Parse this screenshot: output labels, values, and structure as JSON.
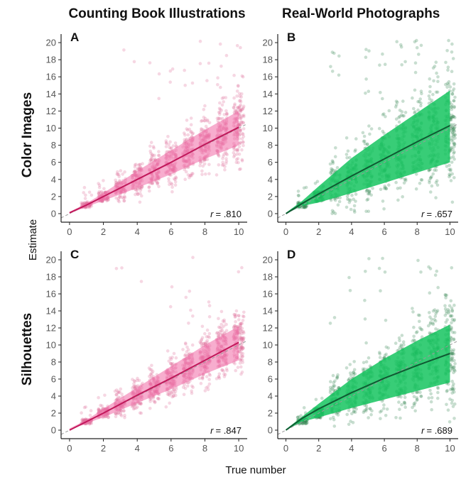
{
  "column_titles": [
    "Counting Book Illustrations",
    "Real-World Photographs"
  ],
  "row_titles": [
    "Color Images",
    "Silhouettes"
  ],
  "xlabel": "True number",
  "ylabel": "Estimate",
  "colors": {
    "pink_point": "#e0709c",
    "pink_band": "#f06aa6",
    "pink_line": "#c2185b",
    "green_point": "#3a8a55",
    "green_band": "#15c45f",
    "green_line": "#0f5a32",
    "identity_line": "#9a9a9a"
  },
  "chart_data": [
    {
      "type": "scatter",
      "panel": "A",
      "row": "Color Images",
      "column": "Counting Book Illustrations",
      "r_symbol": "r",
      "r_value": "= .810",
      "xlim": [
        -0.5,
        10.5
      ],
      "ylim": [
        -1,
        21
      ],
      "xticks": [
        0,
        2,
        4,
        6,
        8,
        10
      ],
      "yticks": [
        0,
        2,
        4,
        6,
        8,
        10,
        12,
        14,
        16,
        18,
        20
      ],
      "fit_line": {
        "x": [
          0,
          1,
          2,
          4,
          6,
          8,
          10
        ],
        "y": [
          0.1,
          1.0,
          2.0,
          4.0,
          6.0,
          8.1,
          10.1
        ]
      },
      "band": {
        "x": [
          0,
          1,
          2,
          4,
          6,
          8,
          10
        ],
        "lower": [
          0.0,
          0.8,
          1.5,
          3.0,
          4.6,
          6.4,
          8.0
        ],
        "upper": [
          0.2,
          1.2,
          2.4,
          5.0,
          7.4,
          9.8,
          12.0
        ]
      },
      "spread": 1.6,
      "outlier_rate": 0.05,
      "seed": 11
    },
    {
      "type": "scatter",
      "panel": "B",
      "row": "Color Images",
      "column": "Real-World Photographs",
      "r_symbol": "r",
      "r_value": "= .657",
      "xlim": [
        -0.5,
        10.5
      ],
      "ylim": [
        -1,
        21
      ],
      "xticks": [
        0,
        2,
        4,
        6,
        8,
        10
      ],
      "yticks": [
        0,
        2,
        4,
        6,
        8,
        10,
        12,
        14,
        16,
        18,
        20
      ],
      "fit_line": {
        "x": [
          0,
          1,
          2,
          4,
          6,
          8,
          10
        ],
        "y": [
          0.0,
          1.2,
          2.3,
          4.4,
          6.4,
          8.4,
          10.3
        ]
      },
      "band": {
        "x": [
          0,
          1,
          2,
          4,
          6,
          8,
          10
        ],
        "lower": [
          0.0,
          0.9,
          1.3,
          2.4,
          3.6,
          4.8,
          6.0
        ],
        "upper": [
          0.1,
          1.5,
          3.2,
          6.5,
          9.2,
          11.8,
          14.4
        ]
      },
      "spread": 2.8,
      "outlier_rate": 0.08,
      "seed": 23
    },
    {
      "type": "scatter",
      "panel": "C",
      "row": "Silhouettes",
      "column": "Counting Book Illustrations",
      "r_symbol": "r",
      "r_value": "= .847",
      "xlim": [
        -0.5,
        10.5
      ],
      "ylim": [
        -1,
        21
      ],
      "xticks": [
        0,
        2,
        4,
        6,
        8,
        10
      ],
      "yticks": [
        0,
        2,
        4,
        6,
        8,
        10,
        12,
        14,
        16,
        18,
        20
      ],
      "fit_line": {
        "x": [
          0,
          1,
          2,
          4,
          6,
          8,
          10
        ],
        "y": [
          0.0,
          1.0,
          2.0,
          4.1,
          6.1,
          8.2,
          10.3
        ]
      },
      "band": {
        "x": [
          0,
          1,
          2,
          4,
          6,
          8,
          10
        ],
        "lower": [
          0.0,
          0.8,
          1.5,
          3.2,
          4.8,
          6.6,
          8.2
        ],
        "upper": [
          0.2,
          1.2,
          2.5,
          5.0,
          7.5,
          10.0,
          12.2
        ]
      },
      "spread": 1.5,
      "outlier_rate": 0.04,
      "seed": 37
    },
    {
      "type": "scatter",
      "panel": "D",
      "row": "Silhouettes",
      "column": "Real-World Photographs",
      "r_symbol": "r",
      "r_value": "= .689",
      "xlim": [
        -0.5,
        10.5
      ],
      "ylim": [
        -1,
        21
      ],
      "xticks": [
        0,
        2,
        4,
        6,
        8,
        10
      ],
      "yticks": [
        0,
        2,
        4,
        6,
        8,
        10,
        12,
        14,
        16,
        18,
        20
      ],
      "fit_line": {
        "x": [
          0,
          1,
          2,
          4,
          6,
          8,
          10
        ],
        "y": [
          0.0,
          1.4,
          2.5,
          4.4,
          6.1,
          7.6,
          9.0
        ]
      },
      "band": {
        "x": [
          0,
          1,
          2,
          4,
          6,
          8,
          10
        ],
        "lower": [
          0.0,
          1.0,
          1.5,
          2.6,
          3.6,
          4.6,
          5.6
        ],
        "upper": [
          0.1,
          1.6,
          3.1,
          6.0,
          8.4,
          10.5,
          12.4
        ]
      },
      "spread": 2.4,
      "outlier_rate": 0.06,
      "seed": 53
    }
  ]
}
